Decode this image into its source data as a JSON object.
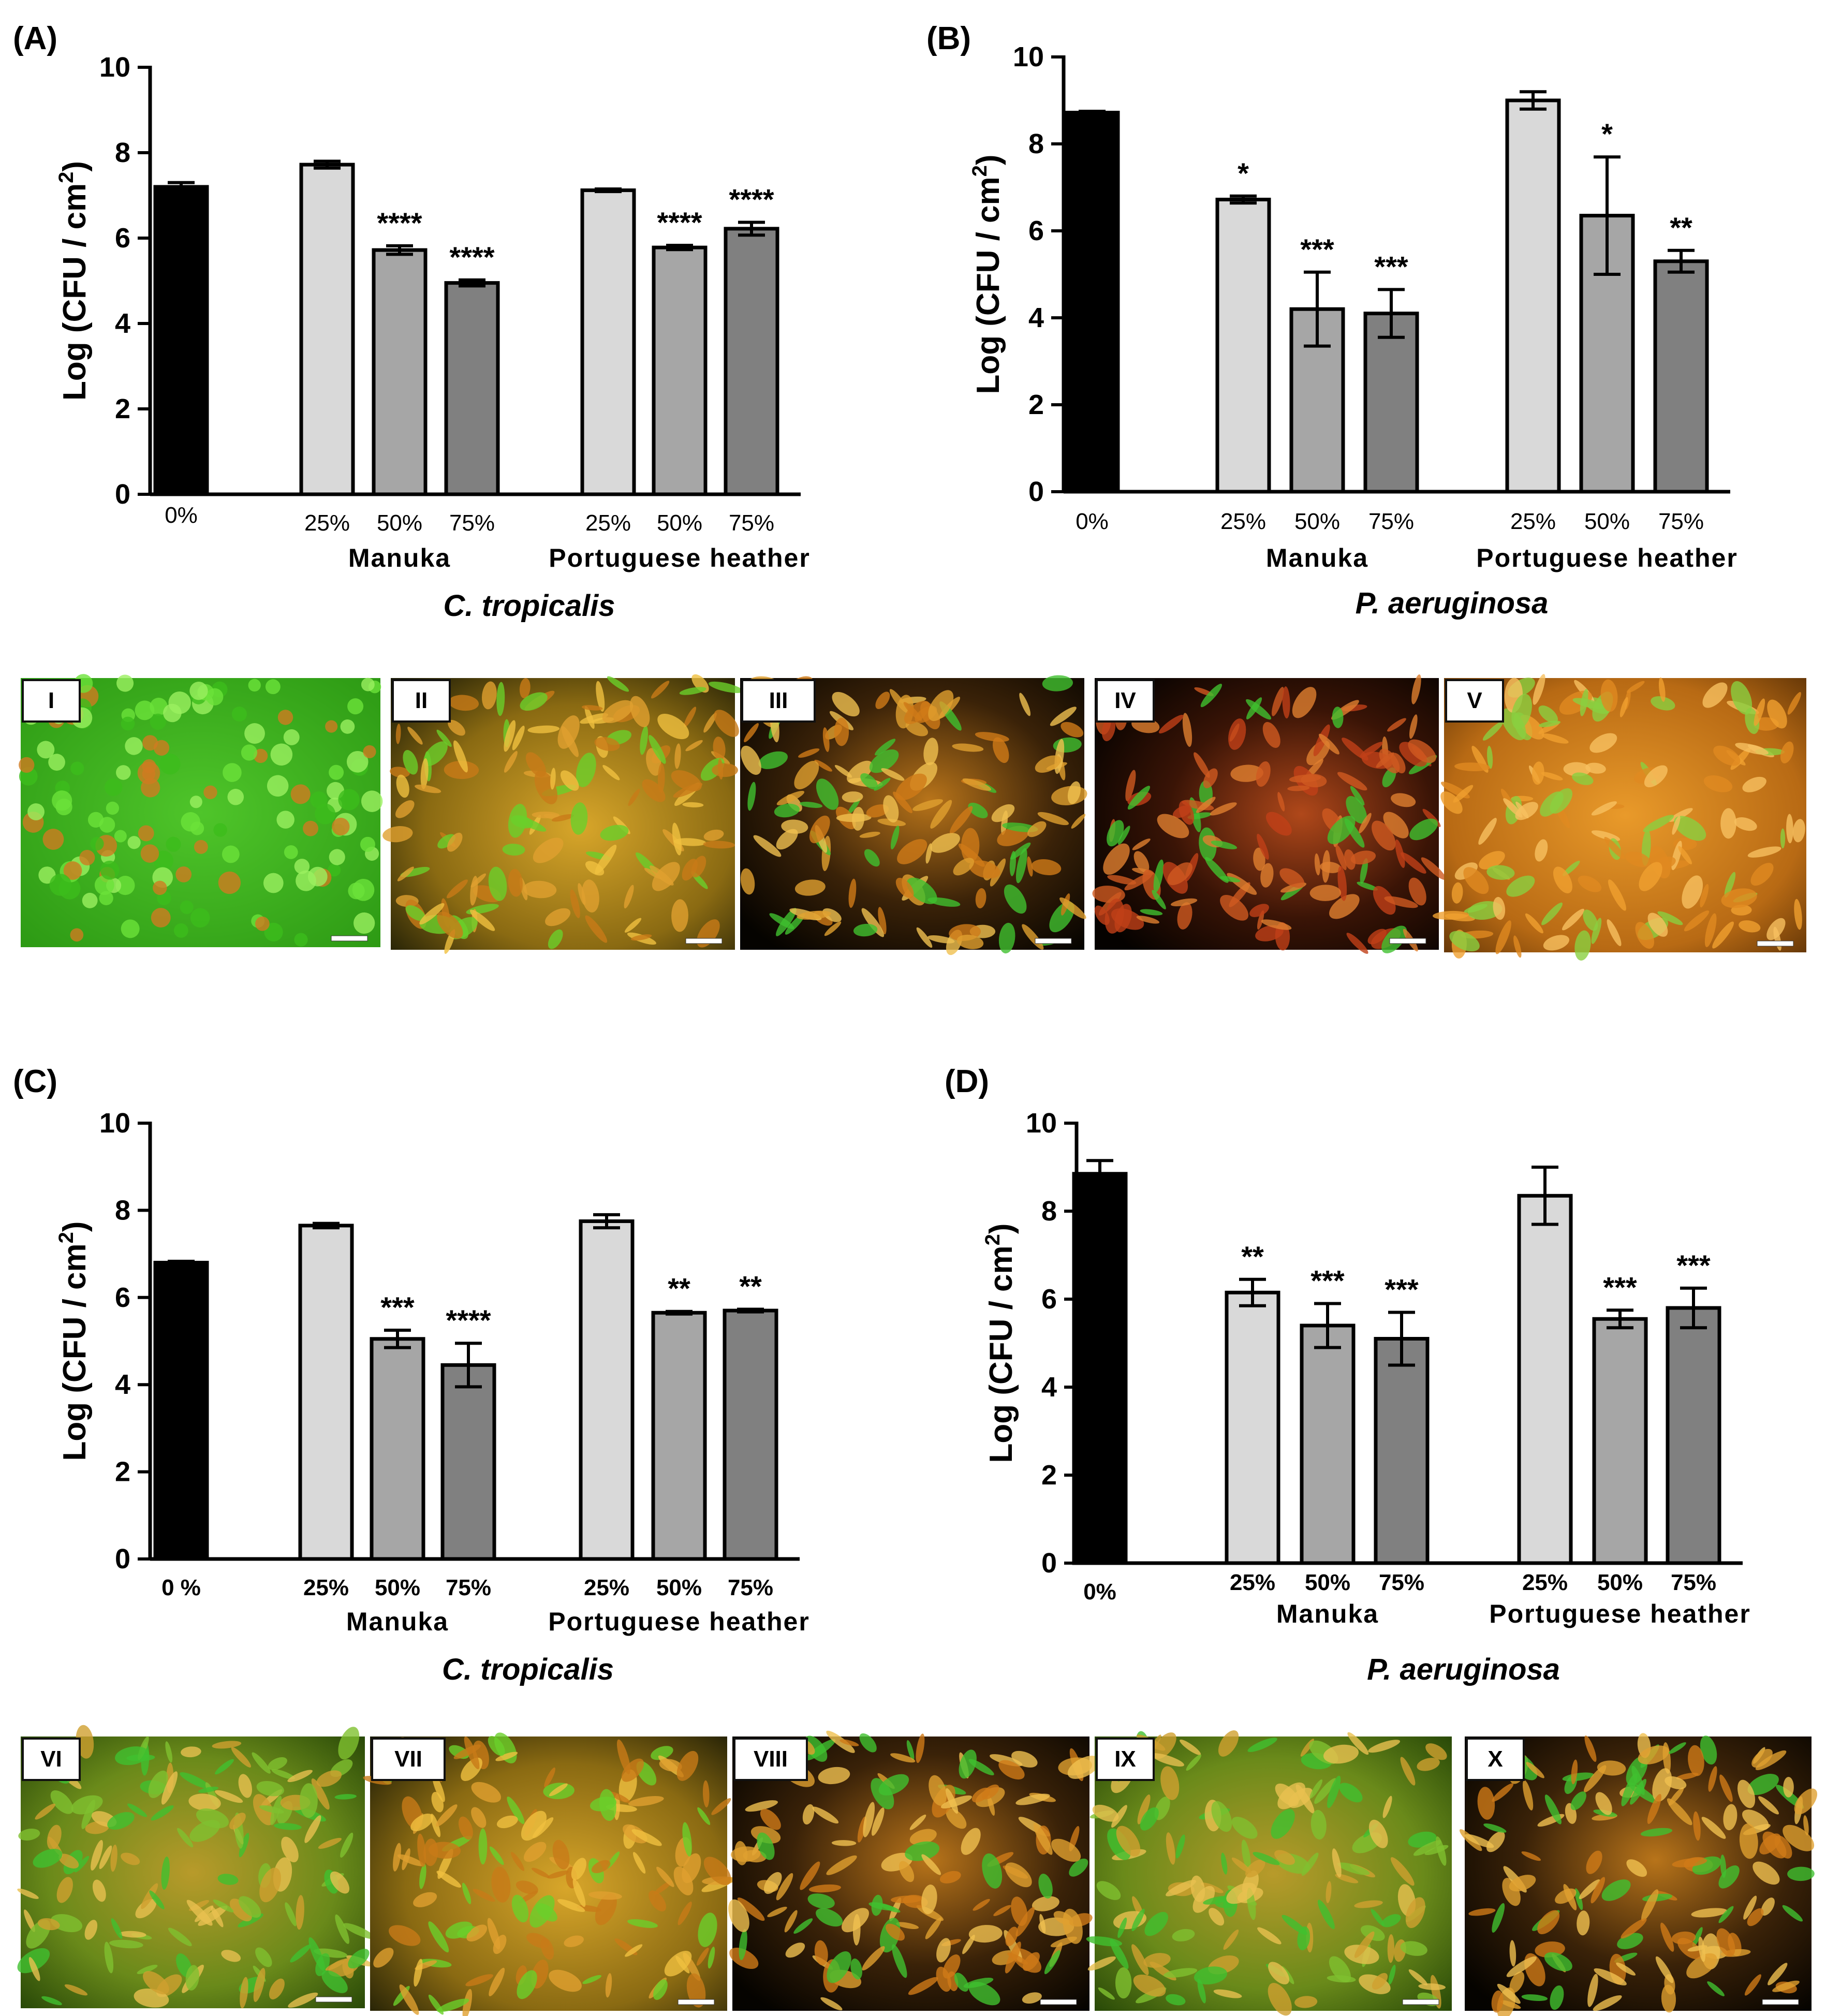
{
  "figure": {
    "panels": [
      {
        "id": "A",
        "label": "(A)",
        "organism": "C. tropicalis",
        "chart_data": {
          "type": "bar",
          "ylabel": "Log (CFU / cm",
          "ylabel_sup": "2",
          "ylabel_tail": ")",
          "ylim": [
            0,
            10
          ],
          "yticks": [
            0,
            2,
            4,
            6,
            8,
            10
          ],
          "grid": false,
          "bars": [
            {
              "label": "0%",
              "group": "control",
              "value": 7.2,
              "err": 0.1,
              "sig": "",
              "color": "#000000"
            },
            {
              "label": "25%",
              "group": "Manuka",
              "value": 7.72,
              "err": 0.08,
              "sig": "",
              "color": "#d9d9d9"
            },
            {
              "label": "50%",
              "group": "Manuka",
              "value": 5.72,
              "err": 0.1,
              "sig": "****",
              "color": "#a6a6a6"
            },
            {
              "label": "75%",
              "group": "Manuka",
              "value": 4.95,
              "err": 0.07,
              "sig": "****",
              "color": "#808080"
            },
            {
              "label": "25%",
              "group": "Portuguese heather",
              "value": 7.12,
              "err": 0.03,
              "sig": "",
              "color": "#d9d9d9"
            },
            {
              "label": "50%",
              "group": "Portuguese heather",
              "value": 5.78,
              "err": 0.05,
              "sig": "****",
              "color": "#a6a6a6"
            },
            {
              "label": "75%",
              "group": "Portuguese heather",
              "value": 6.22,
              "err": 0.15,
              "sig": "****",
              "color": "#808080"
            }
          ],
          "groups": [
            "Manuka",
            "Portuguese heather"
          ]
        }
      },
      {
        "id": "B",
        "label": "(B)",
        "organism": "P. aeruginosa",
        "chart_data": {
          "type": "bar",
          "ylabel": "Log (CFU / cm",
          "ylabel_sup": "2",
          "ylabel_tail": ")",
          "ylim": [
            0,
            10
          ],
          "yticks": [
            0,
            2,
            4,
            6,
            8,
            10
          ],
          "grid": false,
          "bars": [
            {
              "label": "0%",
              "group": "control",
              "value": 8.72,
              "err": 0.03,
              "sig": "",
              "color": "#000000"
            },
            {
              "label": "25%",
              "group": "Manuka",
              "value": 6.72,
              "err": 0.08,
              "sig": "*",
              "color": "#d9d9d9"
            },
            {
              "label": "50%",
              "group": "Manuka",
              "value": 4.2,
              "err": 0.85,
              "sig": "***",
              "color": "#a6a6a6"
            },
            {
              "label": "75%",
              "group": "Manuka",
              "value": 4.1,
              "err": 0.55,
              "sig": "***",
              "color": "#808080"
            },
            {
              "label": "25%",
              "group": "Portuguese heather",
              "value": 9.0,
              "err": 0.2,
              "sig": "",
              "color": "#d9d9d9"
            },
            {
              "label": "50%",
              "group": "Portuguese heather",
              "value": 6.35,
              "err": 1.35,
              "sig": "*",
              "color": "#a6a6a6"
            },
            {
              "label": "75%",
              "group": "Portuguese heather",
              "value": 5.3,
              "err": 0.25,
              "sig": "**",
              "color": "#808080"
            }
          ],
          "groups": [
            "Manuka",
            "Portuguese heather"
          ]
        }
      },
      {
        "id": "C",
        "label": "(C)",
        "organism": "C. tropicalis",
        "chart_data": {
          "type": "bar",
          "ylabel": "Log (CFU / cm",
          "ylabel_sup": "2",
          "ylabel_tail": ")",
          "ylim": [
            0,
            10
          ],
          "yticks": [
            0,
            2,
            4,
            6,
            8,
            10
          ],
          "grid": false,
          "bars": [
            {
              "label": "0 %",
              "group": "control",
              "value": 6.8,
              "err": 0.03,
              "sig": "",
              "color": "#000000"
            },
            {
              "label": "25%",
              "group": "Manuka",
              "value": 7.65,
              "err": 0.05,
              "sig": "",
              "color": "#d9d9d9"
            },
            {
              "label": "50%",
              "group": "Manuka",
              "value": 5.05,
              "err": 0.2,
              "sig": "***",
              "color": "#a6a6a6"
            },
            {
              "label": "75%",
              "group": "Manuka",
              "value": 4.45,
              "err": 0.5,
              "sig": "****",
              "color": "#808080"
            },
            {
              "label": "25%",
              "group": "Portuguese heather",
              "value": 7.75,
              "err": 0.15,
              "sig": "",
              "color": "#d9d9d9"
            },
            {
              "label": "50%",
              "group": "Portuguese heather",
              "value": 5.65,
              "err": 0.03,
              "sig": "**",
              "color": "#a6a6a6"
            },
            {
              "label": "75%",
              "group": "Portuguese heather",
              "value": 5.7,
              "err": 0.03,
              "sig": "**",
              "color": "#808080"
            }
          ],
          "groups": [
            "Manuka",
            "Portuguese heather"
          ]
        }
      },
      {
        "id": "D",
        "label": "(D)",
        "organism": "P. aeruginosa",
        "chart_data": {
          "type": "bar",
          "ylabel": "Log (CFU / cm",
          "ylabel_sup": "2",
          "ylabel_tail": ")",
          "ylim": [
            0,
            10
          ],
          "yticks": [
            0,
            2,
            4,
            6,
            8,
            10
          ],
          "grid": false,
          "bars": [
            {
              "label": "0%",
              "group": "control",
              "value": 8.85,
              "err": 0.3,
              "sig": "",
              "color": "#000000"
            },
            {
              "label": "25%",
              "group": "Manuka",
              "value": 6.15,
              "err": 0.3,
              "sig": "**",
              "color": "#d9d9d9"
            },
            {
              "label": "50%",
              "group": "Manuka",
              "value": 5.4,
              "err": 0.5,
              "sig": "***",
              "color": "#a6a6a6"
            },
            {
              "label": "75%",
              "group": "Manuka",
              "value": 5.1,
              "err": 0.6,
              "sig": "***",
              "color": "#808080"
            },
            {
              "label": "25%",
              "group": "Portuguese heather",
              "value": 8.35,
              "err": 0.65,
              "sig": "",
              "color": "#d9d9d9"
            },
            {
              "label": "50%",
              "group": "Portuguese heather",
              "value": 5.55,
              "err": 0.2,
              "sig": "***",
              "color": "#a6a6a6"
            },
            {
              "label": "75%",
              "group": "Portuguese heather",
              "value": 5.8,
              "err": 0.45,
              "sig": "***",
              "color": "#808080"
            }
          ],
          "groups": [
            "Manuka",
            "Portuguese heather"
          ]
        }
      }
    ],
    "micrographs": [
      {
        "label": "I",
        "tone": "green"
      },
      {
        "label": "II",
        "tone": "orange-green"
      },
      {
        "label": "III",
        "tone": "dark-orange"
      },
      {
        "label": "IV",
        "tone": "dark-red"
      },
      {
        "label": "V",
        "tone": "orange"
      },
      {
        "label": "VI",
        "tone": "green-orange"
      },
      {
        "label": "VII",
        "tone": "orange-green"
      },
      {
        "label": "VIII",
        "tone": "dark-orange"
      },
      {
        "label": "IX",
        "tone": "green-orange"
      },
      {
        "label": "X",
        "tone": "dark-orange"
      }
    ],
    "colors": {
      "control": "#000000",
      "light": "#d9d9d9",
      "mid": "#a6a6a6",
      "dark": "#808080",
      "axis": "#000000"
    }
  }
}
